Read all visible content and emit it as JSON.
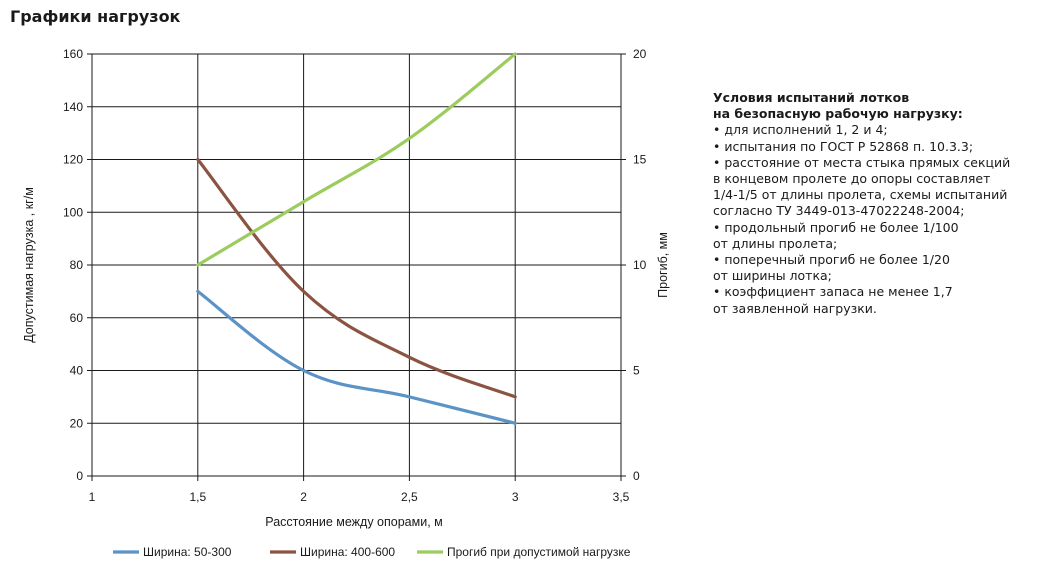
{
  "page_title": "Графики нагрузок",
  "chart_data": {
    "type": "line",
    "x_ticks": [
      "1",
      "1,5",
      "2",
      "2,5",
      "3",
      "3,5"
    ],
    "x_tick_values": [
      1,
      1.5,
      2,
      2.5,
      3,
      3.5
    ],
    "xlim": [
      1,
      3.5
    ],
    "ylim": [
      0,
      160
    ],
    "y_ticks": [
      "0",
      "20",
      "40",
      "60",
      "80",
      "100",
      "120",
      "140",
      "160"
    ],
    "y_tick_values": [
      0,
      20,
      40,
      60,
      80,
      100,
      120,
      140,
      160
    ],
    "y2lim": [
      0,
      20
    ],
    "y2_ticks": [
      "0",
      "5",
      "10",
      "15",
      "20"
    ],
    "y2_tick_values": [
      0,
      5,
      10,
      15,
      20
    ],
    "xlabel": "Расстояние между опорами, м",
    "ylabel": "Допустимая нагрузка , кг/м",
    "y2label": "Прогиб, мм",
    "grid": true,
    "legend_position": "bottom",
    "series": [
      {
        "name": "Ширина:  50-300",
        "axis": "left",
        "color": "#5b93c7",
        "x": [
          1.5,
          2,
          2.5,
          3
        ],
        "y": [
          70,
          40,
          30,
          20
        ]
      },
      {
        "name": "Ширина:  400-600",
        "axis": "left",
        "color": "#8b5341",
        "x": [
          1.5,
          2,
          2.5,
          3
        ],
        "y": [
          120,
          70,
          45,
          30
        ]
      },
      {
        "name": "Прогиб при допустимой нагрузке",
        "axis": "right",
        "color": "#9ccc5d",
        "x": [
          1.5,
          2,
          2.5,
          3
        ],
        "y": [
          10,
          13,
          16,
          20
        ]
      }
    ]
  },
  "notes": {
    "heading": "Условия испытаний лотков\nна безопасную рабочую нагрузку:",
    "items": [
      "• для исполнений 1, 2 и 4;",
      "• испытания по ГОСТ Р 52868 п. 10.3.3;",
      "• расстояние от места стыка прямых секций\nв концевом пролете до опоры составляет\n1/4-1/5 от длины пролета, схемы испытаний\nсогласно ТУ 3449-013-47022248-2004;",
      "• продольный прогиб не более 1/100\nот длины пролета;",
      "• поперечный прогиб не более 1/20\nот ширины лотка;",
      "• коэффициент запаса не менее 1,7\nот заявленной нагрузки."
    ]
  }
}
